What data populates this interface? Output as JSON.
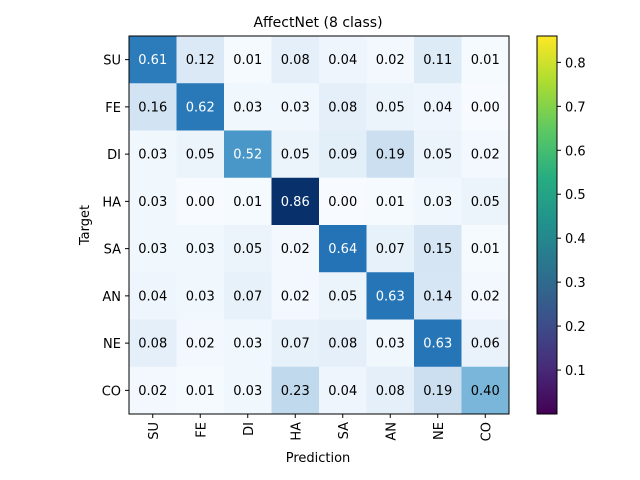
{
  "chart_data": {
    "type": "heatmap",
    "title": "AffectNet (8 class)",
    "xlabel": "Prediction",
    "ylabel": "Target",
    "x_categories": [
      "SU",
      "FE",
      "DI",
      "HA",
      "SA",
      "AN",
      "NE",
      "CO"
    ],
    "y_categories": [
      "SU",
      "FE",
      "DI",
      "HA",
      "SA",
      "AN",
      "NE",
      "CO"
    ],
    "values": [
      [
        0.61,
        0.12,
        0.01,
        0.08,
        0.04,
        0.02,
        0.11,
        0.01
      ],
      [
        0.16,
        0.62,
        0.03,
        0.03,
        0.08,
        0.05,
        0.04,
        0.0
      ],
      [
        0.03,
        0.05,
        0.52,
        0.05,
        0.09,
        0.19,
        0.05,
        0.02
      ],
      [
        0.03,
        0.0,
        0.01,
        0.86,
        0.0,
        0.01,
        0.03,
        0.05
      ],
      [
        0.03,
        0.03,
        0.05,
        0.02,
        0.64,
        0.07,
        0.15,
        0.01
      ],
      [
        0.04,
        0.03,
        0.07,
        0.02,
        0.05,
        0.63,
        0.14,
        0.02
      ],
      [
        0.08,
        0.02,
        0.03,
        0.07,
        0.08,
        0.03,
        0.63,
        0.06
      ],
      [
        0.02,
        0.01,
        0.03,
        0.23,
        0.04,
        0.08,
        0.19,
        0.4
      ]
    ],
    "cell_colormap": "Blues",
    "value_range": [
      0.0,
      0.86
    ],
    "text_color_threshold": 0.5,
    "colorbar": {
      "colormap": "viridis",
      "range": [
        0.0,
        0.86
      ],
      "ticks": [
        0.1,
        0.2,
        0.3,
        0.4,
        0.5,
        0.6,
        0.7,
        0.8
      ],
      "tick_labels": [
        "0.1",
        "0.2",
        "0.3",
        "0.4",
        "0.5",
        "0.6",
        "0.7",
        "0.8"
      ]
    }
  }
}
